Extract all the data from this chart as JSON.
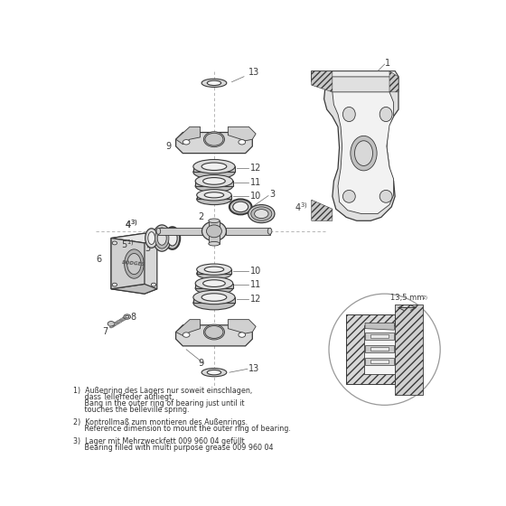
{
  "bg_color": "#ffffff",
  "line_color": "#3a3a3a",
  "fill_light": "#e8e8e8",
  "fill_mid": "#d0d0d0",
  "fill_dark": "#b8b8b8",
  "hatch_fill": "#c8c8c8",
  "notes": [
    "1)  Außenring des Lagers nur soweit einschlagen,\n     dass Tellerfeder aufliegt.\n     Bang in the outer ring of bearing just until it\n     touches the belleville spring.",
    "2)  Kontrollmaß zum montieren des Außenrings.\n     Reference dimension to mount the outer ring of bearing.",
    "3)  Lager mit Mehrzweckfett 009 960 04 gefüllt\n     Bearing filled with multi purpose grease 009 960 04"
  ],
  "figsize": [
    5.6,
    5.6
  ],
  "dpi": 100
}
